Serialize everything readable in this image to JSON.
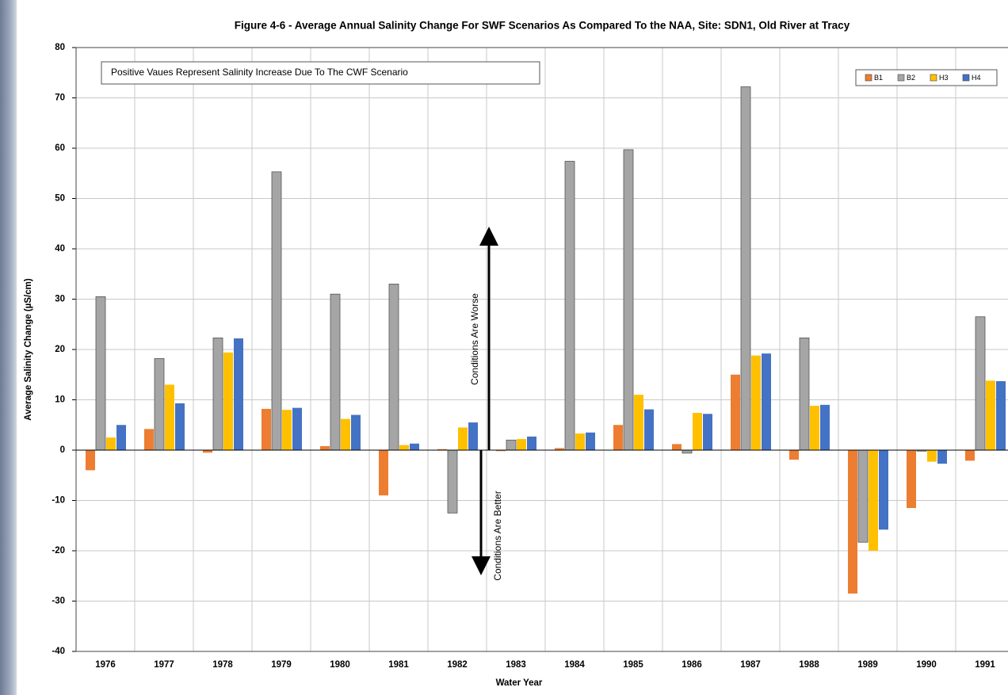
{
  "chart_data": {
    "type": "bar",
    "title": "Figure 4-6 - Average Annual Salinity Change For SWF Scenarios As Compared To the NAA, Site: SDN1, Old River at Tracy",
    "x_label": "Water Year",
    "y_label": "Average Salinity Change  (µS/cm)",
    "annotations": [
      "Positive Vaues Represent Salinity Increase Due To The CWF Scenario",
      "Conditions Are Worse",
      "Conditions Are Better"
    ],
    "categories": [
      "1976",
      "1977",
      "1978",
      "1979",
      "1980",
      "1981",
      "1982",
      "1983",
      "1984",
      "1985",
      "1986",
      "1987",
      "1988",
      "1989",
      "1990",
      "1991"
    ],
    "series": [
      {
        "name": "B1",
        "color": "#ed7d31",
        "values": [
          -4,
          4.2,
          -0.5,
          8.2,
          0.8,
          -9,
          0.2,
          -0.2,
          0.4,
          5,
          1.2,
          15,
          -1.9,
          -28.5,
          -11.5,
          -2.1
        ]
      },
      {
        "name": "B2",
        "color": "#a5a5a5",
        "values": [
          30.5,
          18.2,
          22.3,
          55.3,
          31,
          33,
          -12.5,
          2,
          57.4,
          59.7,
          -0.6,
          72.2,
          22.3,
          -18.3,
          -0.2,
          26.5
        ]
      },
      {
        "name": "H3",
        "color": "#ffc000",
        "values": [
          2.5,
          13,
          19.4,
          8,
          6.2,
          1,
          4.5,
          2.2,
          3.3,
          11,
          7.4,
          18.8,
          8.8,
          -20,
          -2.3,
          13.8
        ]
      },
      {
        "name": "H4",
        "color": "#4472c4",
        "values": [
          5,
          9.3,
          22.2,
          8.4,
          7,
          1.3,
          5.5,
          2.7,
          3.5,
          8.1,
          7.2,
          19.2,
          9,
          -15.8,
          -2.7,
          13.7
        ]
      }
    ],
    "ylim": [
      -40,
      80
    ],
    "yticks": [
      -40,
      -30,
      -20,
      -10,
      0,
      10,
      20,
      30,
      40,
      50,
      60,
      70,
      80
    ],
    "grid": true,
    "legend": "upper right"
  }
}
